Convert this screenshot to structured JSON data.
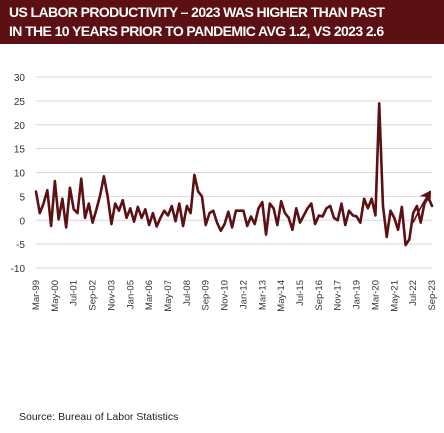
{
  "title": {
    "line1": "US LABOR PRODUCTIVITY – 2023 WAS HIGHER THAN PAST",
    "line2": "IN THE 10 YEARS PRIOR TO PANDEMIC AVG 1.2, VS 2023 2.6"
  },
  "source": "Source:  Bureau of Labor Statistics",
  "colors": {
    "banner": "#5c1014",
    "series": "#5c1014",
    "grid": "#d9d9d9"
  },
  "chart_data": {
    "type": "line",
    "title": "US LABOR PRODUCTIVITY – 2023 WAS HIGHER THAN PAST IN THE 10 YEARS PRIOR TO PANDEMIC AVG 1.2, VS 2023 2.6",
    "xlabel": "",
    "ylabel": "",
    "ylim": [
      -10,
      30
    ],
    "yticks": [
      -10,
      -5,
      0,
      5,
      10,
      15,
      20,
      25,
      30
    ],
    "grid": true,
    "legend": "none",
    "tick_labels": [
      "Mar-99",
      "May-00",
      "Jul-01",
      "Sep-02",
      "Nov-03",
      "Jan-05",
      "Mar-06",
      "May-07",
      "Jul-08",
      "Sep-09",
      "Nov-10",
      "Jan-12",
      "Mar-13",
      "May-14",
      "Jul-15",
      "Sep-16",
      "Nov-17",
      "Jan-19",
      "Mar-20",
      "May-21",
      "Jul-22",
      "Sep-23"
    ],
    "annotation": "trend-arrow",
    "series": [
      {
        "values": [
          6.0,
          1.5,
          3.5,
          6.3,
          -1.2,
          8.2,
          0.2,
          4.5,
          -1.5,
          6.8,
          2.3,
          1.5,
          8.7,
          0.5,
          3.5,
          -0.5,
          2.2,
          5.2,
          9.2,
          5.0,
          -0.8,
          3.5,
          2.0,
          4.2,
          0.5,
          2.5,
          -0.3,
          2.8,
          0.5,
          2.3,
          -1.0,
          1.5,
          -1.3,
          0.5,
          2.0,
          1.0,
          3.0,
          -0.2,
          3.5,
          -1.2,
          3.0,
          1.5,
          9.5,
          6.0,
          5.0,
          -1.0,
          1.5,
          2.0,
          -0.5,
          -2.2,
          -0.8,
          1.8,
          -1.5,
          2.0,
          2.0,
          2.0,
          -1.2,
          0.8,
          -0.8,
          2.5,
          3.8,
          -3.0,
          3.5,
          2.5,
          -1.0,
          4.0,
          1.5,
          0.5,
          -2.0,
          2.5,
          -0.5,
          1.0,
          2.5,
          3.5,
          -0.8,
          1.0,
          0.8,
          2.5,
          3.0,
          0.5,
          0.0,
          3.5,
          -1.0,
          2.0,
          1.0,
          0.8,
          -0.5,
          4.5,
          2.5,
          4.5,
          1.0,
          24.5,
          3.0,
          -3.5,
          2.0,
          0.5,
          -2.0,
          2.8,
          -5.2,
          -4.0,
          1.5,
          3.0,
          -0.5,
          3.5,
          4.8,
          3.0
        ]
      }
    ]
  }
}
